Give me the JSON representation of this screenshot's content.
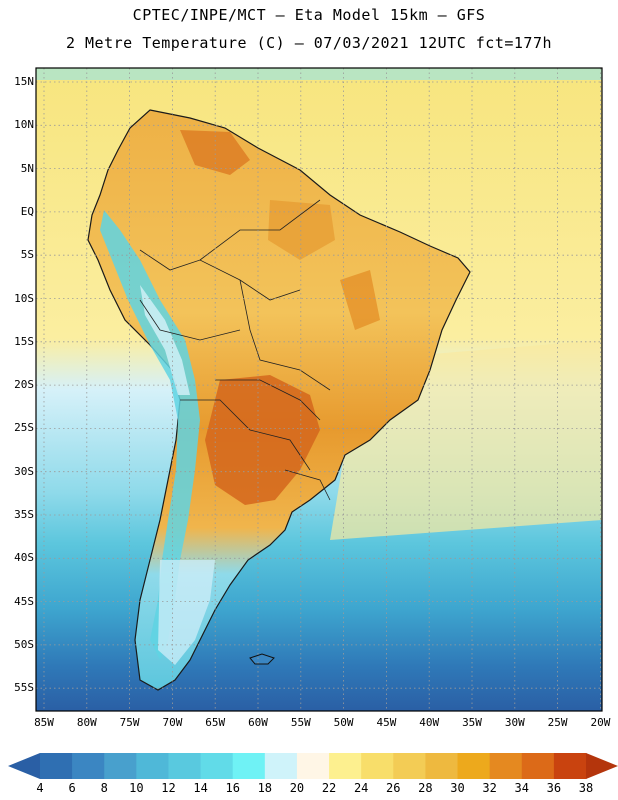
{
  "header": {
    "line1": "CPTEC/INPE/MCT —  Eta Model 15km — GFS",
    "line2": "2 Metre Temperature (C) — 07/03/2021 12UTC fct=177h"
  },
  "map": {
    "lat_labels": [
      "15N",
      "10N",
      "5N",
      "EQ",
      "5S",
      "10S",
      "15S",
      "20S",
      "25S",
      "30S",
      "35S",
      "40S",
      "45S",
      "50S",
      "55S"
    ],
    "lon_labels": [
      "85W",
      "80W",
      "75W",
      "70W",
      "65W",
      "60W",
      "55W",
      "50W",
      "45W",
      "40W",
      "35W",
      "30W",
      "25W",
      "20W"
    ],
    "region": "South America"
  },
  "colorbar": {
    "labels": [
      "4",
      "6",
      "8",
      "10",
      "12",
      "14",
      "16",
      "18",
      "20",
      "22",
      "24",
      "26",
      "28",
      "30",
      "32",
      "34",
      "36",
      "38"
    ],
    "colors": [
      "#2f6fb2",
      "#3b86c2",
      "#48a0cd",
      "#4fb8d8",
      "#59c9df",
      "#61dbe8",
      "#6ff2f5",
      "#cff3fa",
      "#fff6e6",
      "#fdf08f",
      "#f8de6a",
      "#f3cc55",
      "#eeb93f",
      "#eda91c",
      "#e58920",
      "#dc6a18",
      "#c9430f"
    ]
  }
}
